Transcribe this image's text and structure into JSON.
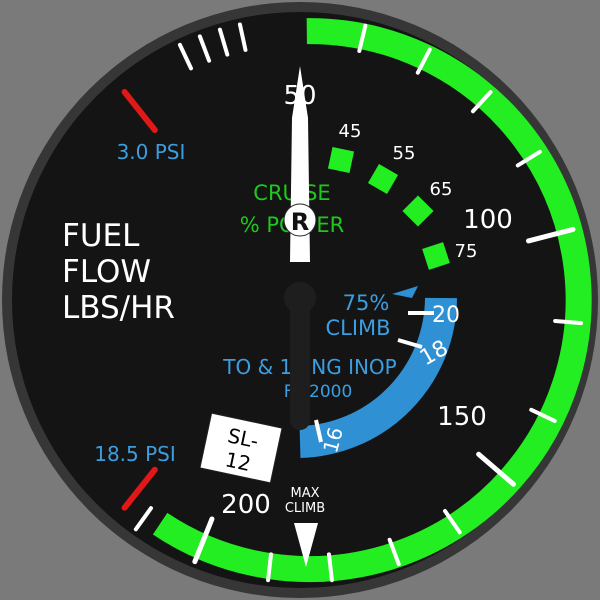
{
  "gauge": {
    "title_lines": [
      "FUEL",
      "FLOW",
      "LBS/HR"
    ],
    "top_number": "50",
    "scale_labels": {
      "mid": "100",
      "lower": "150",
      "bottom": "200"
    },
    "psi_high": "3.0 PSI",
    "psi_low": "18.5 PSI",
    "cruise": {
      "line1": "CRUISE",
      "line2": "% POWER",
      "percents": [
        "45",
        "55",
        "65",
        "75"
      ]
    },
    "climb": {
      "line1": "75%",
      "line2": "CLIMB",
      "marks": [
        "20",
        "18",
        "16"
      ]
    },
    "takeoff": {
      "line1": "TO & 1 ENG INOP",
      "line2": "FT 2000"
    },
    "placard": {
      "line1": "SL-",
      "line2": "12"
    },
    "max_climb": {
      "line1": "MAX",
      "line2": "CLIMB"
    },
    "needle_hub_letter": "R",
    "colors": {
      "background": "#7a7a7a",
      "bezel": "#3d3d3d",
      "face": "#141414",
      "green_arc": "#22ee22",
      "climb_arc": "#2f90d4",
      "redline": "#e01818",
      "label_blue": "#3b9ee0",
      "label_green": "#1ec81e",
      "needle": "#ffffff"
    }
  }
}
